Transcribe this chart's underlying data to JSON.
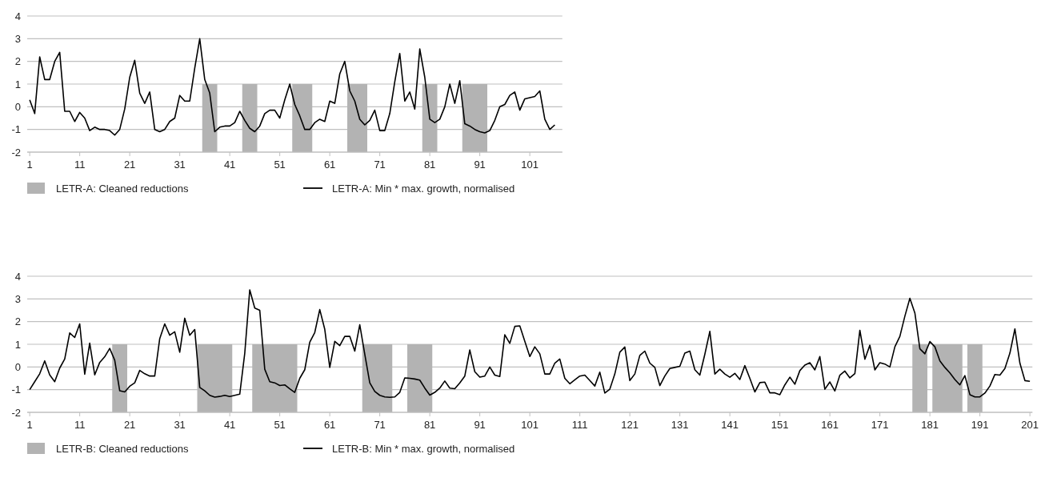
{
  "chart_data": [
    {
      "type": "line",
      "grid": "y",
      "legend": "bottom",
      "ylim": [
        -2,
        4
      ],
      "yticks": [
        -2,
        -1,
        0,
        1,
        2,
        3,
        4
      ],
      "xlim": [
        0.5,
        107.5
      ],
      "xticks": [
        1,
        11,
        21,
        31,
        41,
        51,
        61,
        71,
        81,
        91,
        101
      ],
      "x": [
        1,
        2,
        3,
        4,
        5,
        6,
        7,
        8,
        9,
        10,
        11,
        12,
        13,
        14,
        15,
        16,
        17,
        18,
        19,
        20,
        21,
        22,
        23,
        24,
        25,
        26,
        27,
        28,
        29,
        30,
        31,
        32,
        33,
        34,
        35,
        36,
        37,
        38,
        39,
        40,
        41,
        42,
        43,
        44,
        45,
        46,
        47,
        48,
        49,
        50,
        51,
        52,
        53,
        54,
        55,
        56,
        57,
        58,
        59,
        60,
        61,
        62,
        63,
        64,
        65,
        66,
        67,
        68,
        69,
        70,
        71,
        72,
        73,
        74,
        75,
        76,
        77,
        78,
        79,
        80,
        81,
        82,
        83,
        84,
        85,
        86,
        87,
        88,
        89,
        90,
        91,
        92,
        93,
        94,
        95,
        96,
        97,
        98,
        99,
        100,
        101,
        102,
        103,
        104,
        105,
        106
      ],
      "bands": [
        {
          "axis": "x",
          "from": 35.5,
          "to": 38.5,
          "label": "LETR-A: Cleaned reductions",
          "color": "#b3b3b3"
        },
        {
          "axis": "x",
          "from": 43.5,
          "to": 46.5,
          "color": "#b3b3b3"
        },
        {
          "axis": "x",
          "from": 53.5,
          "to": 57.5,
          "color": "#b3b3b3"
        },
        {
          "axis": "x",
          "from": 64.5,
          "to": 68.5,
          "color": "#b3b3b3"
        },
        {
          "axis": "x",
          "from": 79.5,
          "to": 82.5,
          "color": "#b3b3b3"
        },
        {
          "axis": "x",
          "from": 87.5,
          "to": 92.5,
          "color": "#b3b3b3"
        }
      ],
      "series": [
        {
          "name": "LETR-A: Min * max. growth, normalised",
          "color": "#000000",
          "values": [
            0.3,
            -0.3,
            2.2,
            1.2,
            1.2,
            2.0,
            2.4,
            -0.2,
            -0.2,
            -0.65,
            -0.25,
            -0.5,
            -1.05,
            -0.9,
            -1.0,
            -1.0,
            -1.05,
            -1.25,
            -1.0,
            -0.1,
            1.3,
            2.05,
            0.6,
            0.15,
            0.65,
            -1.0,
            -1.1,
            -1.0,
            -0.65,
            -0.5,
            0.5,
            0.25,
            0.25,
            1.7,
            3.0,
            1.2,
            0.6,
            -1.1,
            -0.9,
            -0.85,
            -0.85,
            -0.7,
            -0.2,
            -0.6,
            -0.95,
            -1.1,
            -0.85,
            -0.3,
            -0.15,
            -0.15,
            -0.5,
            0.3,
            1.0,
            0.1,
            -0.4,
            -1.0,
            -1.0,
            -0.7,
            -0.55,
            -0.65,
            0.25,
            0.15,
            1.45,
            2.0,
            0.7,
            0.25,
            -0.55,
            -0.8,
            -0.6,
            -0.15,
            -1.05,
            -1.05,
            -0.3,
            1.1,
            2.35,
            0.25,
            0.65,
            -0.1,
            2.55,
            1.3,
            -0.55,
            -0.7,
            -0.55,
            0,
            1.0,
            0.15,
            1.15,
            -0.75,
            -0.85,
            -1.0,
            -1.1,
            -1.15,
            -1.05,
            -0.6,
            0,
            0.1,
            0.5,
            0.65,
            -0.15,
            0.35,
            0.4,
            0.45,
            0.7,
            -0.55,
            -1.0,
            -0.8
          ]
        }
      ]
    },
    {
      "type": "line",
      "grid": "y",
      "legend": "bottom",
      "ylim": [
        -2,
        4
      ],
      "yticks": [
        -2,
        -1,
        0,
        1,
        2,
        3,
        4
      ],
      "xlim": [
        0.5,
        201.5
      ],
      "xticks": [
        1,
        11,
        21,
        31,
        41,
        51,
        61,
        71,
        81,
        91,
        101,
        111,
        121,
        131,
        141,
        151,
        161,
        171,
        181,
        191,
        201
      ],
      "x": [
        1,
        2,
        3,
        4,
        5,
        6,
        7,
        8,
        9,
        10,
        11,
        12,
        13,
        14,
        15,
        16,
        17,
        18,
        19,
        20,
        21,
        22,
        23,
        24,
        25,
        26,
        27,
        28,
        29,
        30,
        31,
        32,
        33,
        34,
        35,
        36,
        37,
        38,
        39,
        40,
        41,
        42,
        43,
        44,
        45,
        46,
        47,
        48,
        49,
        50,
        51,
        52,
        53,
        54,
        55,
        56,
        57,
        58,
        59,
        60,
        61,
        62,
        63,
        64,
        65,
        66,
        67,
        68,
        69,
        70,
        71,
        72,
        73,
        74,
        75,
        76,
        77,
        78,
        79,
        80,
        81,
        82,
        83,
        84,
        85,
        86,
        87,
        88,
        89,
        90,
        91,
        92,
        93,
        94,
        95,
        96,
        97,
        98,
        99,
        100,
        101,
        102,
        103,
        104,
        105,
        106,
        107,
        108,
        109,
        110,
        111,
        112,
        113,
        114,
        115,
        116,
        117,
        118,
        119,
        120,
        121,
        122,
        123,
        124,
        125,
        126,
        127,
        128,
        129,
        130,
        131,
        132,
        133,
        134,
        135,
        136,
        137,
        138,
        139,
        140,
        141,
        142,
        143,
        144,
        145,
        146,
        147,
        148,
        149,
        150,
        151,
        152,
        153,
        154,
        155,
        156,
        157,
        158,
        159,
        160,
        161,
        162,
        163,
        164,
        165,
        166,
        167,
        168,
        169,
        170,
        171,
        172,
        173,
        174,
        175,
        176,
        177,
        178,
        179,
        180,
        181,
        182,
        183,
        184,
        185,
        186,
        187,
        188,
        189,
        190,
        191,
        192,
        193,
        194,
        195,
        196,
        197,
        198,
        199,
        200,
        201
      ],
      "bands": [
        {
          "axis": "x",
          "from": 17.5,
          "to": 20.5,
          "label": "LETR-B: Cleaned reductions",
          "color": "#b3b3b3"
        },
        {
          "axis": "x",
          "from": 34.5,
          "to": 41.5,
          "color": "#b3b3b3"
        },
        {
          "axis": "x",
          "from": 45.5,
          "to": 54.5,
          "color": "#b3b3b3"
        },
        {
          "axis": "x",
          "from": 67.5,
          "to": 73.5,
          "color": "#b3b3b3"
        },
        {
          "axis": "x",
          "from": 76.5,
          "to": 81.5,
          "color": "#b3b3b3"
        },
        {
          "axis": "x",
          "from": 177.5,
          "to": 180.5,
          "color": "#b3b3b3"
        },
        {
          "axis": "x",
          "from": 181.5,
          "to": 187.5,
          "color": "#b3b3b3"
        },
        {
          "axis": "x",
          "from": 188.5,
          "to": 191.5,
          "color": "#b3b3b3"
        }
      ],
      "series": [
        {
          "name": "LETR-B: Min * max. growth, normalised",
          "color": "#000000",
          "values": [
            -1.0,
            -0.65,
            -0.3,
            0.27,
            -0.35,
            -0.65,
            -0.05,
            0.35,
            1.5,
            1.3,
            1.9,
            -0.32,
            1.05,
            -0.35,
            0.2,
            0.45,
            0.82,
            0.3,
            -1.05,
            -1.1,
            -0.85,
            -0.7,
            -0.15,
            -0.3,
            -0.4,
            -0.4,
            1.25,
            1.9,
            1.4,
            1.55,
            0.65,
            2.15,
            1.4,
            1.65,
            -0.9,
            -1.05,
            -1.25,
            -1.33,
            -1.3,
            -1.25,
            -1.3,
            -1.25,
            -1.2,
            0.6,
            3.4,
            2.6,
            2.5,
            -0.1,
            -0.65,
            -0.7,
            -0.82,
            -0.79,
            -0.96,
            -1.12,
            -0.5,
            -0.12,
            1.09,
            1.52,
            2.53,
            1.66,
            -0.02,
            1.13,
            0.94,
            1.35,
            1.35,
            0.7,
            1.86,
            0.56,
            -0.7,
            -1.08,
            -1.25,
            -1.32,
            -1.34,
            -1.32,
            -1.12,
            -0.48,
            -0.5,
            -0.53,
            -0.58,
            -0.93,
            -1.24,
            -1.12,
            -0.93,
            -0.62,
            -0.93,
            -0.96,
            -0.7,
            -0.4,
            0.75,
            -0.21,
            -0.45,
            -0.4,
            0,
            -0.36,
            -0.42,
            1.42,
            1.04,
            1.79,
            1.81,
            1.13,
            0.46,
            0.89,
            0.58,
            -0.31,
            -0.31,
            0.17,
            0.35,
            -0.5,
            -0.74,
            -0.57,
            -0.4,
            -0.36,
            -0.6,
            -0.84,
            -0.23,
            -1.15,
            -0.98,
            -0.31,
            0.65,
            0.88,
            -0.6,
            -0.31,
            0.51,
            0.7,
            0.17,
            -0.02,
            -0.82,
            -0.4,
            -0.07,
            -0.02,
            0.03,
            0.61,
            0.7,
            -0.12,
            -0.36,
            0.56,
            1.57,
            -0.31,
            -0.1,
            -0.31,
            -0.45,
            -0.28,
            -0.55,
            0.06,
            -0.5,
            -1.1,
            -0.69,
            -0.67,
            -1.14,
            -1.14,
            -1.22,
            -0.79,
            -0.45,
            -0.76,
            -0.16,
            0.08,
            0.19,
            -0.13,
            0.46,
            -0.98,
            -0.66,
            -1.06,
            -0.36,
            -0.18,
            -0.48,
            -0.29,
            1.62,
            0.34,
            0.96,
            -0.13,
            0.19,
            0.13,
            0,
            0.89,
            1.35,
            2.24,
            3.03,
            2.38,
            0.8,
            0.58,
            1.12,
            0.89,
            0.27,
            -0.02,
            -0.26,
            -0.55,
            -0.79,
            -0.38,
            -1.22,
            -1.32,
            -1.32,
            -1.15,
            -0.84,
            -0.33,
            -0.36,
            -0.07,
            0.61,
            1.68,
            0.17,
            -0.6,
            -0.63
          ]
        }
      ]
    }
  ]
}
